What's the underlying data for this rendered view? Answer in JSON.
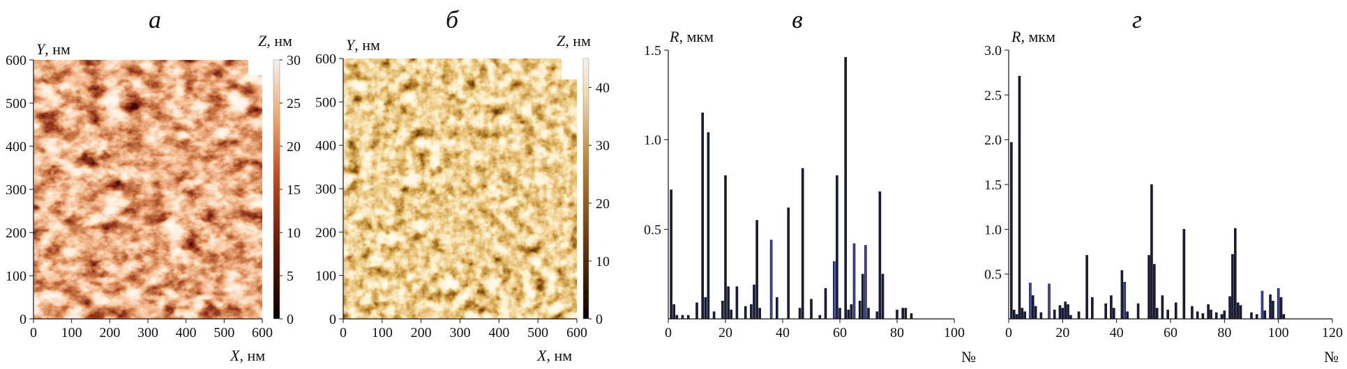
{
  "colors": {
    "afm_a_dark": "#100000",
    "afm_a_mid": "#a83a14",
    "afm_a_light": "#f8dcc4",
    "afm_b_dark": "#1e0800",
    "afm_b_mid": "#9a6422",
    "afm_b_light": "#fff0d8",
    "bar_fill": "#1b1d3a",
    "bar_fill_light": "#3c48a8"
  },
  "chart_data": [
    {
      "panel": "а",
      "type": "heatmap",
      "title": "",
      "xlabel_var": "X",
      "xlabel_unit": ", нм",
      "ylabel_var": "Y",
      "ylabel_unit": ", нм",
      "zlabel_var": "Z",
      "zlabel_unit": ", нм",
      "xlim": [
        0,
        600
      ],
      "ylim": [
        0,
        600
      ],
      "zlim": [
        0,
        30
      ],
      "x_ticks": [
        "0",
        "100",
        "200",
        "300",
        "400",
        "500",
        "600"
      ],
      "y_ticks": [
        "0",
        "100",
        "200",
        "300",
        "400",
        "500",
        "600"
      ],
      "z_ticks": [
        "0",
        "5",
        "10",
        "15",
        "20",
        "25",
        "30"
      ],
      "description_palette": "afm_a"
    },
    {
      "panel": "б",
      "type": "heatmap",
      "title": "",
      "xlabel_var": "X",
      "xlabel_unit": ", нм",
      "ylabel_var": "Y",
      "ylabel_unit": ", нм",
      "zlabel_var": "Z",
      "zlabel_unit": ", нм",
      "xlim": [
        0,
        600
      ],
      "ylim": [
        0,
        600
      ],
      "zlim": [
        0,
        45
      ],
      "x_ticks": [
        "0",
        "100",
        "200",
        "300",
        "400",
        "500",
        "600"
      ],
      "y_ticks": [
        "0",
        "100",
        "200",
        "300",
        "400",
        "500",
        "600"
      ],
      "z_ticks": [
        "0",
        "10",
        "20",
        "30",
        "40"
      ],
      "description_palette": "afm_b"
    },
    {
      "panel": "в",
      "type": "bar",
      "title": "",
      "xlabel": "№",
      "ylabel_var": "R",
      "ylabel_unit": ", мкм",
      "xlim": [
        0,
        100
      ],
      "ylim": [
        0,
        1.5
      ],
      "x_ticks": [
        "0",
        "20",
        "40",
        "60",
        "80",
        "100"
      ],
      "y_ticks": [
        "0.5",
        "1.0",
        "1.5"
      ],
      "x": [
        1,
        2,
        3,
        5,
        7,
        10,
        12,
        13,
        14,
        16,
        19,
        20,
        21,
        22,
        24,
        27,
        29,
        30,
        31,
        32,
        36,
        38,
        42,
        46,
        47,
        50,
        53,
        55,
        58,
        59,
        60,
        62,
        63,
        64,
        65,
        67,
        68,
        69,
        70,
        73,
        74,
        75,
        80,
        82,
        83,
        85
      ],
      "values": [
        0.72,
        0.08,
        0.02,
        0.02,
        0.02,
        0.09,
        1.15,
        0.12,
        1.04,
        0.04,
        0.1,
        0.8,
        0.18,
        0.05,
        0.18,
        0.07,
        0.08,
        0.19,
        0.55,
        0.06,
        0.44,
        0.12,
        0.62,
        0.06,
        0.84,
        0.11,
        0.02,
        0.17,
        0.32,
        0.8,
        0.06,
        1.46,
        0.05,
        0.08,
        0.42,
        0.1,
        0.25,
        0.41,
        0.06,
        0.04,
        0.71,
        0.25,
        0.05,
        0.06,
        0.06,
        0.03
      ]
    },
    {
      "panel": "г",
      "type": "bar",
      "title": "",
      "xlabel": "№",
      "ylabel_var": "R",
      "ylabel_unit": ", мкм",
      "xlim": [
        0,
        120
      ],
      "ylim": [
        0,
        3.0
      ],
      "x_ticks": [
        "0",
        "20",
        "40",
        "60",
        "80",
        "100",
        "120"
      ],
      "y_ticks": [
        "0.5",
        "1.0",
        "1.5",
        "2.0",
        "2.5",
        "3.0"
      ],
      "x": [
        1,
        2,
        3,
        4,
        5,
        6,
        8,
        9,
        10,
        12,
        15,
        17,
        19,
        20,
        21,
        22,
        23,
        26,
        29,
        31,
        36,
        38,
        39,
        42,
        43,
        44,
        48,
        52,
        53,
        54,
        55,
        57,
        59,
        62,
        65,
        68,
        70,
        72,
        74,
        75,
        77,
        79,
        80,
        82,
        83,
        84,
        85,
        86,
        90,
        92,
        94,
        95,
        97,
        98,
        100,
        101,
        102
      ],
      "values": [
        1.97,
        0.1,
        0.05,
        2.71,
        0.12,
        0.08,
        0.4,
        0.26,
        0.14,
        0.07,
        0.39,
        0.1,
        0.15,
        0.12,
        0.19,
        0.16,
        0.04,
        0.08,
        0.71,
        0.24,
        0.17,
        0.26,
        0.12,
        0.54,
        0.41,
        0.08,
        0.17,
        0.71,
        1.5,
        0.61,
        0.12,
        0.26,
        0.1,
        0.18,
        1.0,
        0.14,
        0.08,
        0.06,
        0.16,
        0.1,
        0.07,
        0.05,
        0.09,
        0.25,
        0.72,
        1.01,
        0.18,
        0.15,
        0.07,
        0.05,
        0.31,
        0.09,
        0.27,
        0.2,
        0.34,
        0.24,
        0.05
      ]
    }
  ]
}
